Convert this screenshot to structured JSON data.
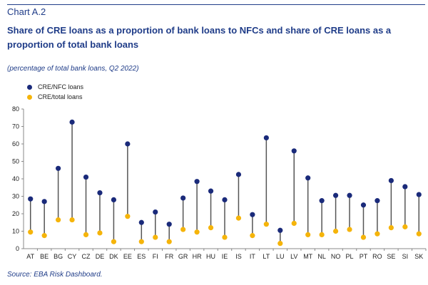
{
  "header": {
    "label": "Chart A.2",
    "title": "Share of CRE loans as a proportion of bank loans to NFCs and share of CRE loans as a proportion of total bank loans",
    "subtitle": "(percentage of total bank loans, Q2 2022)"
  },
  "source": "Source: EBA Risk Dashboard.",
  "legend": [
    {
      "label": "CRE/NFC loans",
      "color": "#1a2a7a"
    },
    {
      "label": "CRE/total loans",
      "color": "#f5b40a"
    }
  ],
  "colors": {
    "stem": "#555555",
    "text": "#1f3c88",
    "axis": "#888888"
  },
  "chart_data": {
    "type": "scatter",
    "categories": [
      "AT",
      "BE",
      "BG",
      "CY",
      "CZ",
      "DE",
      "DK",
      "EE",
      "ES",
      "FI",
      "FR",
      "GR",
      "HR",
      "HU",
      "IE",
      "IS",
      "IT",
      "LT",
      "LU",
      "LV",
      "MT",
      "NL",
      "NO",
      "PL",
      "PT",
      "RO",
      "SE",
      "SI",
      "SK"
    ],
    "series": [
      {
        "name": "CRE/NFC loans",
        "values": [
          28.5,
          27,
          46,
          72.5,
          41,
          32,
          28,
          60,
          15,
          21,
          14,
          29,
          38.5,
          33,
          28,
          42.5,
          19.5,
          63.5,
          10.5,
          56,
          40.5,
          27.5,
          30.5,
          30.5,
          25,
          27.5,
          39,
          35.5,
          31
        ]
      },
      {
        "name": "CRE/total loans",
        "values": [
          9.5,
          7.5,
          16.5,
          16.5,
          8,
          9,
          4,
          18.5,
          4,
          6.5,
          4,
          11,
          9.5,
          12,
          6.5,
          17.5,
          7.5,
          14,
          3,
          14.5,
          8,
          8,
          10,
          11,
          6.5,
          8.5,
          12,
          12.5,
          8.5
        ]
      }
    ],
    "ylim": [
      0,
      80
    ],
    "yticks": [
      0,
      10,
      20,
      30,
      40,
      50,
      60,
      70,
      80
    ],
    "grid": false,
    "legend_position": "top-left"
  }
}
